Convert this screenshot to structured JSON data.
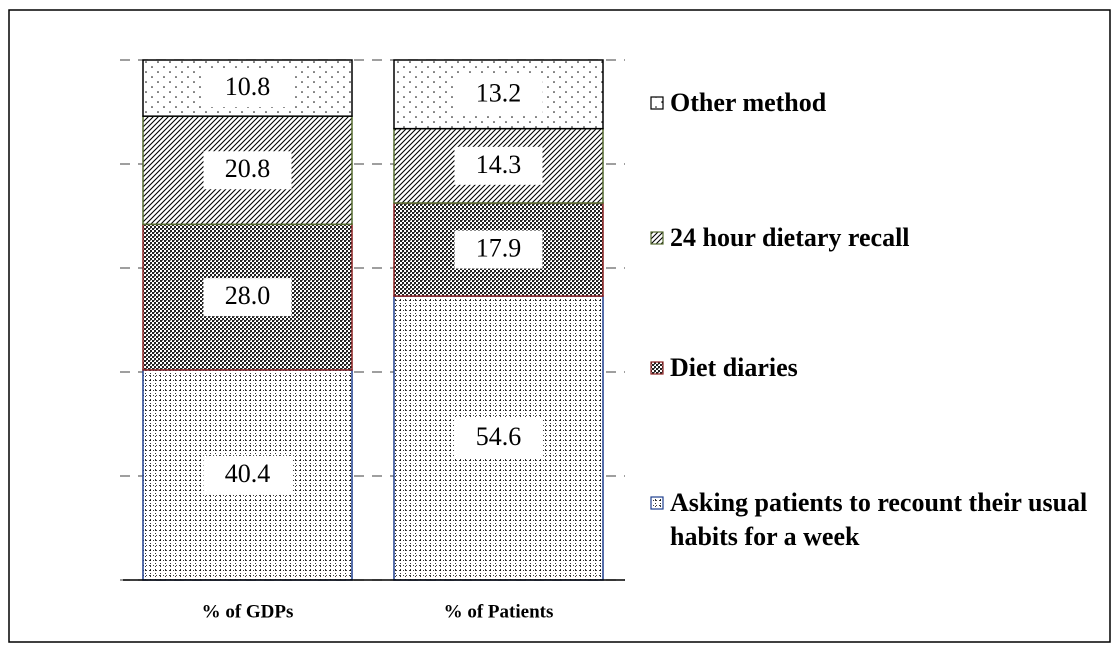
{
  "chart_data": {
    "type": "stacked_bar",
    "categories": [
      "% of GDPs",
      "% of Patients"
    ],
    "series": [
      {
        "name": "Asking patients to recount their usual habits for a week",
        "color": "#1f3f8f",
        "values": [
          40.4,
          54.6
        ],
        "value_labels": [
          "40.4",
          "54.6"
        ]
      },
      {
        "name": "Diet diaries",
        "color": "#8b2020",
        "values": [
          28.0,
          17.9
        ],
        "value_labels": [
          "28.0",
          "17.9"
        ]
      },
      {
        "name": "24 hour dietary recall",
        "color": "#556b2f",
        "values": [
          20.8,
          14.3
        ],
        "value_labels": [
          "20.8",
          "14.3"
        ]
      },
      {
        "name": "Other method",
        "color": "#000000",
        "values": [
          10.8,
          13.2
        ],
        "value_labels": [
          "10.8",
          "13.2"
        ]
      }
    ],
    "ylim": [
      0,
      100
    ],
    "yticks": [
      0,
      20,
      40,
      60,
      80,
      100
    ],
    "grid": true,
    "legend": "right"
  }
}
